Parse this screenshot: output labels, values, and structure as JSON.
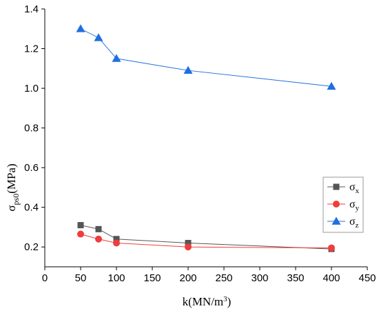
{
  "chart_data": {
    "type": "line",
    "x": [
      50,
      75,
      100,
      200,
      400
    ],
    "xlim": [
      0,
      450
    ],
    "ylim": [
      0.1,
      1.4
    ],
    "x_ticks": [
      0,
      50,
      100,
      150,
      200,
      250,
      300,
      350,
      400,
      450
    ],
    "y_ticks": [
      0.2,
      0.4,
      0.6,
      0.8,
      1.0,
      1.2,
      1.4
    ],
    "x_tick_labels": [
      "0",
      "50",
      "100",
      "150",
      "200",
      "250",
      "300",
      "350",
      "400",
      "450"
    ],
    "y_tick_labels": [
      "0.2",
      "0.4",
      "0.6",
      "0.8",
      "1.0",
      "1.2",
      "1.4"
    ],
    "xlabel": {
      "pre": "k(MN/m",
      "sup": "3",
      "post": ")"
    },
    "ylabel": {
      "main": "σ",
      "sub": "ps0",
      "post": "(MPa)"
    },
    "legend_position": "right-lower",
    "grid": false,
    "series": [
      {
        "name": "σ",
        "name_sub": "x",
        "values": [
          0.31,
          0.29,
          0.24,
          0.22,
          0.19
        ],
        "color": "#555555",
        "marker": "square"
      },
      {
        "name": "σ",
        "name_sub": "y",
        "values": [
          0.265,
          0.24,
          0.22,
          0.2,
          0.195
        ],
        "color": "#f03c3c",
        "marker": "circle"
      },
      {
        "name": "σ",
        "name_sub": "z",
        "values": [
          1.3,
          1.255,
          1.15,
          1.09,
          1.01
        ],
        "color": "#1f6fe0",
        "marker": "triangle"
      }
    ]
  }
}
